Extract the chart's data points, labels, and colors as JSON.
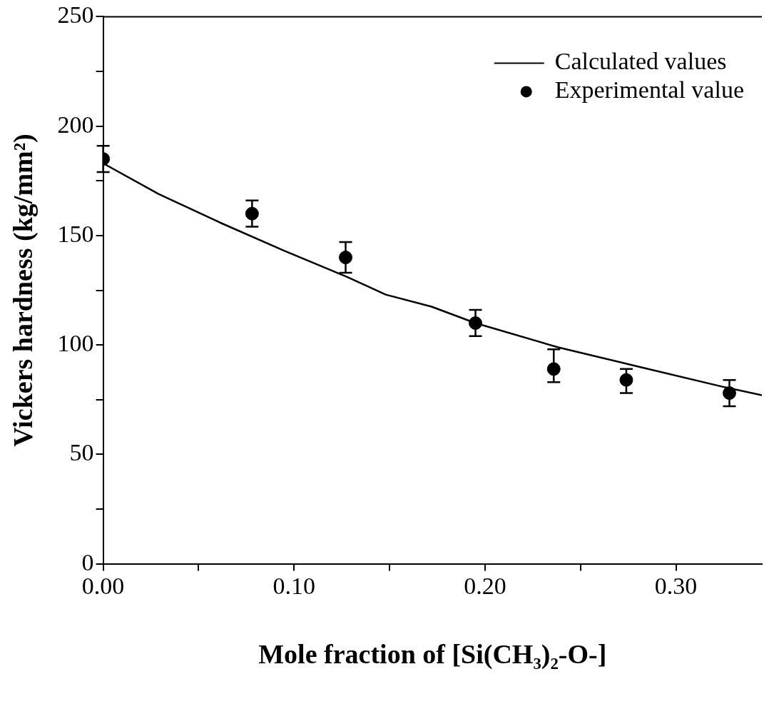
{
  "chart_data": {
    "type": "scatter",
    "xlabel": "Mole fraction of [Si(CH₃)₂-O-]",
    "ylabel": "Vickers hardness (kg/mm²)",
    "xlim": [
      0,
      0.345
    ],
    "xticks": [
      {
        "value": 0,
        "label": "0.00"
      },
      {
        "value": 0.05,
        "label": null
      },
      {
        "value": 0.1,
        "label": "0.10"
      },
      {
        "value": 0.15,
        "label": null
      },
      {
        "value": 0.2,
        "label": "0.20"
      },
      {
        "value": 0.25,
        "label": null
      },
      {
        "value": 0.3,
        "label": "0.30"
      }
    ],
    "ylim": [
      0,
      250
    ],
    "yticks": [
      0,
      {
        "value": 25,
        "label": null
      },
      50,
      {
        "value": 75,
        "label": null
      },
      100,
      {
        "value": 125,
        "label": null
      },
      150,
      {
        "value": 175,
        "label": null
      },
      200,
      {
        "value": 225,
        "label": null
      },
      250
    ],
    "grid": false,
    "legend": "top right",
    "series": [
      {
        "name": "Calculated values",
        "type": "line",
        "marker": "none",
        "line_style": "solid",
        "color": "#000000",
        "x": [
          0,
          0.029,
          0.061,
          0.095,
          0.128,
          0.148,
          0.172,
          0.195,
          0.238,
          0.278,
          0.324,
          0.345
        ],
        "values": [
          183,
          169,
          156,
          143,
          131,
          123,
          117.5,
          110,
          99,
          90.6,
          81,
          77
        ]
      },
      {
        "name": "Experimental value",
        "type": "scatter",
        "marker": "circle",
        "color": "#000000",
        "x": [
          0,
          0.078,
          0.127,
          0.195,
          0.236,
          0.274,
          0.328
        ],
        "values": [
          185,
          160,
          140,
          110,
          89,
          84,
          78
        ],
        "errors": [
          6,
          6,
          7,
          6,
          [
            83,
            98
          ],
          [
            78,
            89
          ],
          6
        ]
      }
    ]
  }
}
